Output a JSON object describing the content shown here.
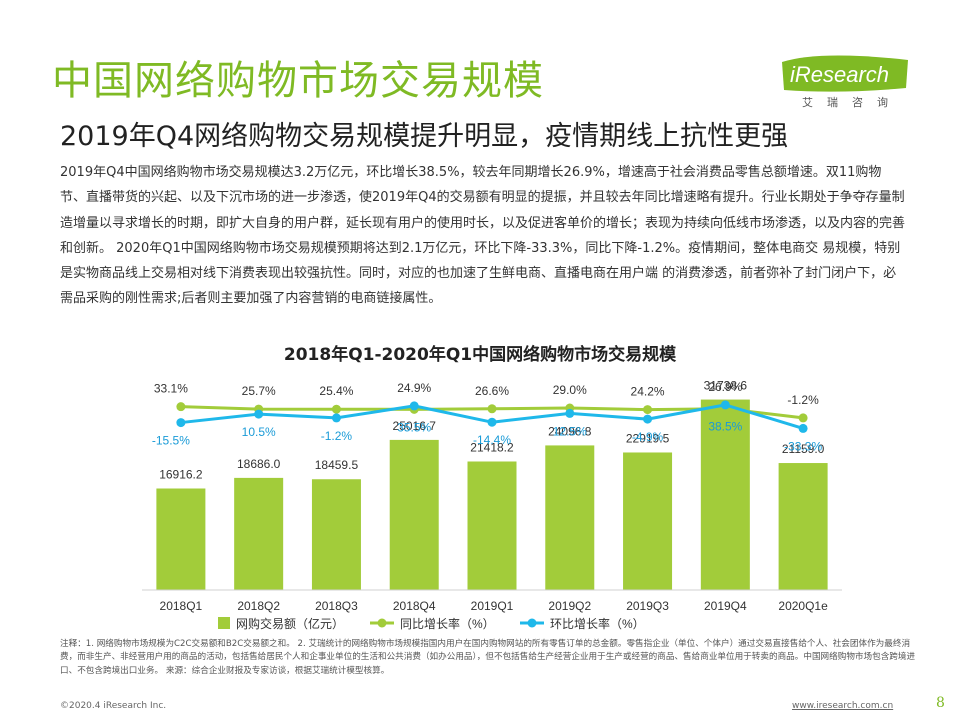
{
  "page": {
    "title": "中国网络购物市场交易规模",
    "subtitle": "2019年Q4网络购物交易规模提升明显，疫情期线上抗性更强",
    "body": "2019年Q4中国网络购物市场交易规模达3.2万亿元，环比增长38.5%，较去年同期增长26.9%，增速高于社会消费品零售总额增速。双11购物节、直播带货的兴起、以及下沉市场的进一步渗透，使2019年Q4的交易额有明显的提振，并且较去年同比增速略有提升。行业长期处于争夺存量制造增量以寻求增长的时期，即扩大自身的用户群，延长现有用户的使用时长，以及促进客单价的增长；表现为持续向低线市场渗透，以及内容的完善和创新。  2020年Q1中国网络购物市场交易规模预期将达到2.1万亿元，环比下降-33.3%，同比下降-1.2%。疫情期间，整体电商交 易规模，特别是实物商品线上交易相对线下消费表现出较强抗性。同时，对应的也加速了生鲜电商、直播电商在用户端 的消费渗透，前者弥补了封门闭户下，必需品采购的刚性需求;后者则主要加强了内容营销的电商链接属性。",
    "note": "注释：1. 网络购物市场规模为C2C交易额和B2C交易额之和。 2. 艾瑞统计的网络购物市场规模指国内用户在国内购物网站的所有零售订单的总金额。零售指企业（单位、个体户）通过交易直接售给个人、社会团体作为最终消费，而非生产、非经营用户用的商品的活动，包括售给居民个人和企事业单位的生活和公共消费（如办公用品），但不包括售给生产经营企业用于生产或经营的商品、售给商业单位用于转卖的商品。中国网络购物市场包含跨境进口、不包含跨境出口业务。 来源：综合企业财报及专家访谈，根据艾瑞统计模型核算。",
    "footer_left": "©2020.4 iResearch Inc.",
    "footer_right": "www.iresearch.com.cn",
    "page_number": "8"
  },
  "logo": {
    "brand": "iResearch",
    "cn": "艾瑞咨询",
    "color": "#7fba24"
  },
  "colors": {
    "bar": "#a2cc3a",
    "yoy_line": "#a2cc3a",
    "qoq_line": "#1fb8ea",
    "qoq_label": "#1a9bd7",
    "axis": "#d0d0d0",
    "title_green": "#7fba24"
  },
  "chart_data": {
    "type": "bar",
    "title": "2018年Q1-2020年Q1中国网络购物市场交易规模",
    "categories": [
      "2018Q1",
      "2018Q2",
      "2018Q3",
      "2018Q4",
      "2019Q1",
      "2019Q2",
      "2019Q3",
      "2019Q4",
      "2020Q1e"
    ],
    "bar_values": [
      16916.2,
      18686.0,
      18459.5,
      25016.7,
      21418.2,
      24096.8,
      22919.5,
      31738.6,
      21159.0
    ],
    "bar_labels": [
      "16916.2",
      "18686.0",
      "18459.5",
      "25016.7",
      "21418.2",
      "24096.8",
      "22919.5",
      "31738.6",
      "21159.0"
    ],
    "yoy_values": [
      33.1,
      25.7,
      25.4,
      24.9,
      26.6,
      29.0,
      24.2,
      26.9,
      -1.2
    ],
    "yoy_labels": [
      "33.1%",
      "25.7%",
      "25.4%",
      "24.9%",
      "26.6%",
      "29.0%",
      "24.2%",
      "26.9%",
      "-1.2%"
    ],
    "qoq_values": [
      -15.5,
      10.5,
      -1.2,
      35.5,
      -14.4,
      12.5,
      -4.9,
      38.5,
      -33.3
    ],
    "qoq_labels": [
      "-15.5%",
      "10.5%",
      "-1.2%",
      "35.5%",
      "-14.4%",
      "12.5%",
      "-4.9%",
      "38.5%",
      "-33.3%"
    ],
    "series": [
      {
        "name": "网购交易额（亿元）",
        "type": "bar"
      },
      {
        "name": "同比增长率（%）",
        "type": "line"
      },
      {
        "name": "环比增长率（%）",
        "type": "line"
      }
    ],
    "legend_position": "bottom",
    "grid": false
  }
}
